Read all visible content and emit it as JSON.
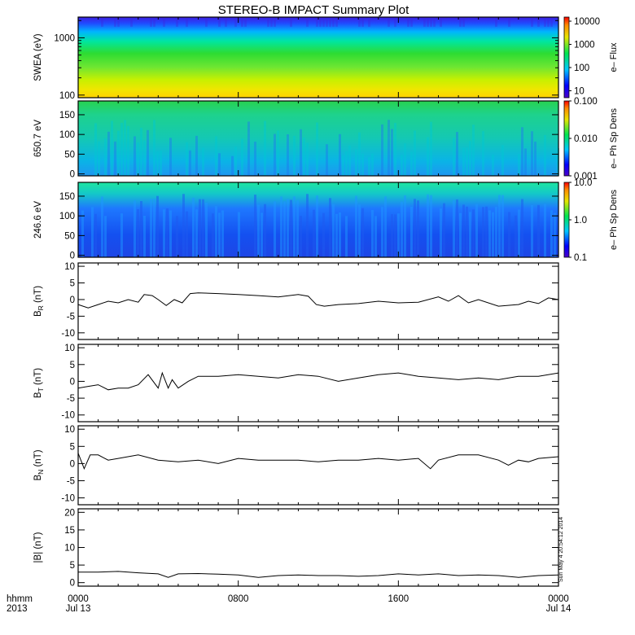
{
  "title": "STEREO-B IMPACT Summary Plot",
  "stamp": "Sun May  4 20:54:12 2014",
  "x_axis": {
    "row_label": "hhmm",
    "year_label": "2013",
    "tick_times": [
      "0000",
      "0800",
      "1600",
      "0000"
    ],
    "tick_dates": [
      "Jul 13",
      "",
      "",
      "Jul 14"
    ]
  },
  "colors": {
    "frame": "#000000",
    "trace": "#000000"
  },
  "chart_data": [
    {
      "id": "swea",
      "type": "heatmap",
      "ylabel": "SWEA (eV)",
      "yscale": "log",
      "ylim": [
        90,
        2300
      ],
      "yticks": [
        100,
        1000
      ],
      "ytick_labels": [
        "100",
        "1000"
      ],
      "colorbar": {
        "label": "e– Flux",
        "scale": "log",
        "range": [
          5,
          15000
        ],
        "ticks": [
          10,
          100,
          1000,
          10000
        ],
        "tick_labels": [
          "10",
          "100",
          "1000",
          "10000"
        ]
      },
      "x_range_hours": [
        0,
        24
      ]
    },
    {
      "id": "pad650",
      "type": "heatmap",
      "ylabel": "650.7 eV",
      "ylim": [
        -5,
        185
      ],
      "yticks": [
        0,
        50,
        100,
        150
      ],
      "ytick_labels": [
        "0",
        "50",
        "100",
        "150"
      ],
      "colorbar": {
        "label": "e– Ph Sp Dens",
        "scale": "log",
        "range": [
          0.001,
          0.1
        ],
        "ticks": [
          0.001,
          0.01,
          0.1
        ],
        "tick_labels": [
          "0.001",
          "0.010",
          "0.100"
        ]
      },
      "x_range_hours": [
        0,
        24
      ]
    },
    {
      "id": "pad246",
      "type": "heatmap",
      "ylabel": "246.6 eV",
      "ylim": [
        -5,
        185
      ],
      "yticks": [
        0,
        50,
        100,
        150
      ],
      "ytick_labels": [
        "0",
        "50",
        "100",
        "150"
      ],
      "colorbar": {
        "label": "e– Ph Sp Dens",
        "scale": "log",
        "range": [
          0.1,
          10
        ],
        "ticks": [
          0.1,
          1,
          10
        ],
        "tick_labels": [
          "0.1",
          "1.0",
          "10.0"
        ]
      },
      "x_range_hours": [
        0,
        24
      ]
    },
    {
      "id": "br",
      "type": "line",
      "ylabel_main": "B",
      "ylabel_sub": "R",
      "ylabel_unit": " (nT)",
      "ylim": [
        -12,
        11
      ],
      "yticks": [
        -10,
        -5,
        0,
        5,
        10
      ],
      "ytick_labels": [
        "-10",
        "-5",
        "0",
        "5",
        "10"
      ],
      "x_hours": [
        0,
        0.5,
        1,
        1.5,
        2,
        2.5,
        3,
        3.3,
        3.7,
        4,
        4.4,
        4.8,
        5.2,
        5.6,
        6,
        7,
        8,
        9,
        10,
        11,
        11.5,
        11.9,
        12.3,
        13,
        14,
        15,
        16,
        17,
        18,
        18.5,
        19,
        19.5,
        20,
        21,
        22,
        22.5,
        23,
        23.5,
        24
      ],
      "y": [
        -1.5,
        -2.5,
        -1.5,
        -0.5,
        -1.0,
        0.0,
        -0.8,
        1.5,
        1.2,
        0.0,
        -1.8,
        0.0,
        -1.0,
        1.8,
        2.0,
        1.8,
        1.5,
        1.2,
        0.8,
        1.5,
        1.0,
        -1.5,
        -2.0,
        -1.5,
        -1.2,
        -0.5,
        -1.0,
        -0.8,
        0.8,
        -0.5,
        1.2,
        -1.0,
        0.0,
        -2.0,
        -1.5,
        -0.5,
        -1.2,
        0.5,
        0.0
      ]
    },
    {
      "id": "bt",
      "type": "line",
      "ylabel_main": "B",
      "ylabel_sub": "T",
      "ylabel_unit": " (nT)",
      "ylim": [
        -12,
        11
      ],
      "yticks": [
        -10,
        -5,
        0,
        5,
        10
      ],
      "ytick_labels": [
        "-10",
        "-5",
        "0",
        "5",
        "10"
      ],
      "x_hours": [
        0,
        0.5,
        1,
        1.5,
        2,
        2.5,
        3,
        3.5,
        4,
        4.2,
        4.5,
        4.7,
        5,
        5.5,
        6,
        7,
        8,
        9,
        10,
        11,
        12,
        13,
        14,
        15,
        16,
        17,
        18,
        19,
        20,
        21,
        22,
        23,
        24
      ],
      "y": [
        -2.0,
        -1.5,
        -1.0,
        -2.5,
        -2.0,
        -2.0,
        -1.0,
        2.0,
        -2.0,
        2.5,
        -2.0,
        0.5,
        -2.0,
        0.0,
        1.5,
        1.5,
        2.0,
        1.5,
        1.0,
        2.0,
        1.5,
        0.0,
        1.0,
        2.0,
        2.5,
        1.5,
        1.0,
        0.5,
        1.0,
        0.5,
        1.5,
        1.5,
        2.5
      ]
    },
    {
      "id": "bn",
      "type": "line",
      "ylabel_main": "B",
      "ylabel_sub": "N",
      "ylabel_unit": " (nT)",
      "ylim": [
        -12,
        11
      ],
      "yticks": [
        -10,
        -5,
        0,
        5,
        10
      ],
      "ytick_labels": [
        "-10",
        "-5",
        "0",
        "5",
        "10"
      ],
      "x_hours": [
        0,
        0.3,
        0.6,
        1,
        1.5,
        2,
        3,
        4,
        5,
        6,
        7,
        8,
        9,
        10,
        11,
        12,
        13,
        14,
        15,
        16,
        17,
        17.6,
        18,
        19,
        20,
        21,
        21.5,
        22,
        22.5,
        23,
        24
      ],
      "y": [
        3.0,
        -1.5,
        2.5,
        2.5,
        1.0,
        1.5,
        2.5,
        1.0,
        0.5,
        1.0,
        0.0,
        1.5,
        1.0,
        1.0,
        1.0,
        0.5,
        1.0,
        1.0,
        1.5,
        1.0,
        1.5,
        -1.5,
        1.0,
        2.5,
        2.5,
        1.0,
        -0.5,
        1.0,
        0.5,
        1.5,
        2.0
      ]
    },
    {
      "id": "bmag",
      "type": "line",
      "ylabel_main": "|B| (nT)",
      "ylim": [
        -1,
        21
      ],
      "yticks": [
        0,
        5,
        10,
        15,
        20
      ],
      "ytick_labels": [
        "0",
        "5",
        "10",
        "15",
        "20"
      ],
      "x_hours": [
        0,
        1,
        2,
        3,
        4,
        4.5,
        5,
        6,
        7,
        8,
        9,
        10,
        11,
        12,
        13,
        14,
        15,
        16,
        17,
        18,
        19,
        20,
        21,
        22,
        23,
        24
      ],
      "y": [
        3.0,
        3.0,
        3.2,
        2.8,
        2.5,
        1.5,
        2.5,
        2.6,
        2.4,
        2.2,
        1.5,
        2.0,
        2.2,
        2.0,
        2.0,
        1.8,
        2.0,
        2.5,
        2.2,
        2.5,
        2.0,
        2.2,
        2.0,
        1.5,
        2.0,
        2.2
      ]
    }
  ]
}
